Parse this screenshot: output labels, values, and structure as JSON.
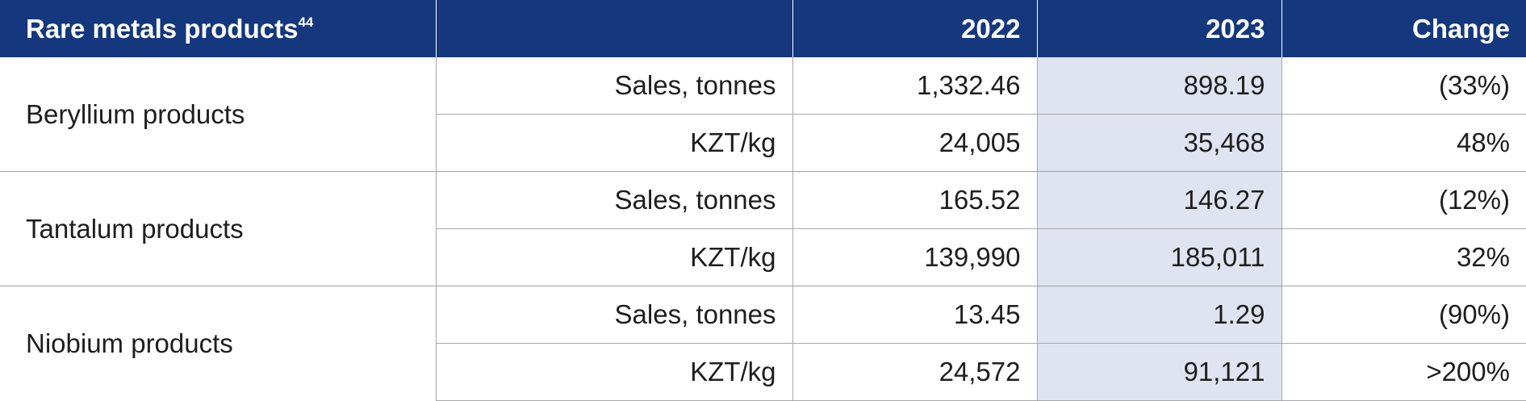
{
  "header": {
    "title": "Rare metals products",
    "footnote": "44",
    "col_metric": "",
    "col_2022": "2022",
    "col_2023": "2023",
    "col_change": "Change"
  },
  "groups": [
    {
      "product": "Beryllium products",
      "rows": [
        {
          "metric": "Sales, tonnes",
          "y2022": "1,332.46",
          "y2023": "898.19",
          "change": "(33%)"
        },
        {
          "metric": "KZT/kg",
          "y2022": "24,005",
          "y2023": "35,468",
          "change": "48%"
        }
      ]
    },
    {
      "product": "Tantalum products",
      "rows": [
        {
          "metric": "Sales, tonnes",
          "y2022": "165.52",
          "y2023": "146.27",
          "change": "(12%)"
        },
        {
          "metric": "KZT/kg",
          "y2022": "139,990",
          "y2023": "185,011",
          "change": "32%"
        }
      ]
    },
    {
      "product": "Niobium products",
      "rows": [
        {
          "metric": "Sales, tonnes",
          "y2022": "13.45",
          "y2023": "1.29",
          "change": "(90%)"
        },
        {
          "metric": "KZT/kg",
          "y2022": "24,572",
          "y2023": "91,121",
          "change": ">200%"
        }
      ]
    }
  ],
  "colors": {
    "header_bg": "#14377d",
    "highlight_col_bg": "#e0e3f0",
    "grid_line": "#a8a8a8"
  }
}
